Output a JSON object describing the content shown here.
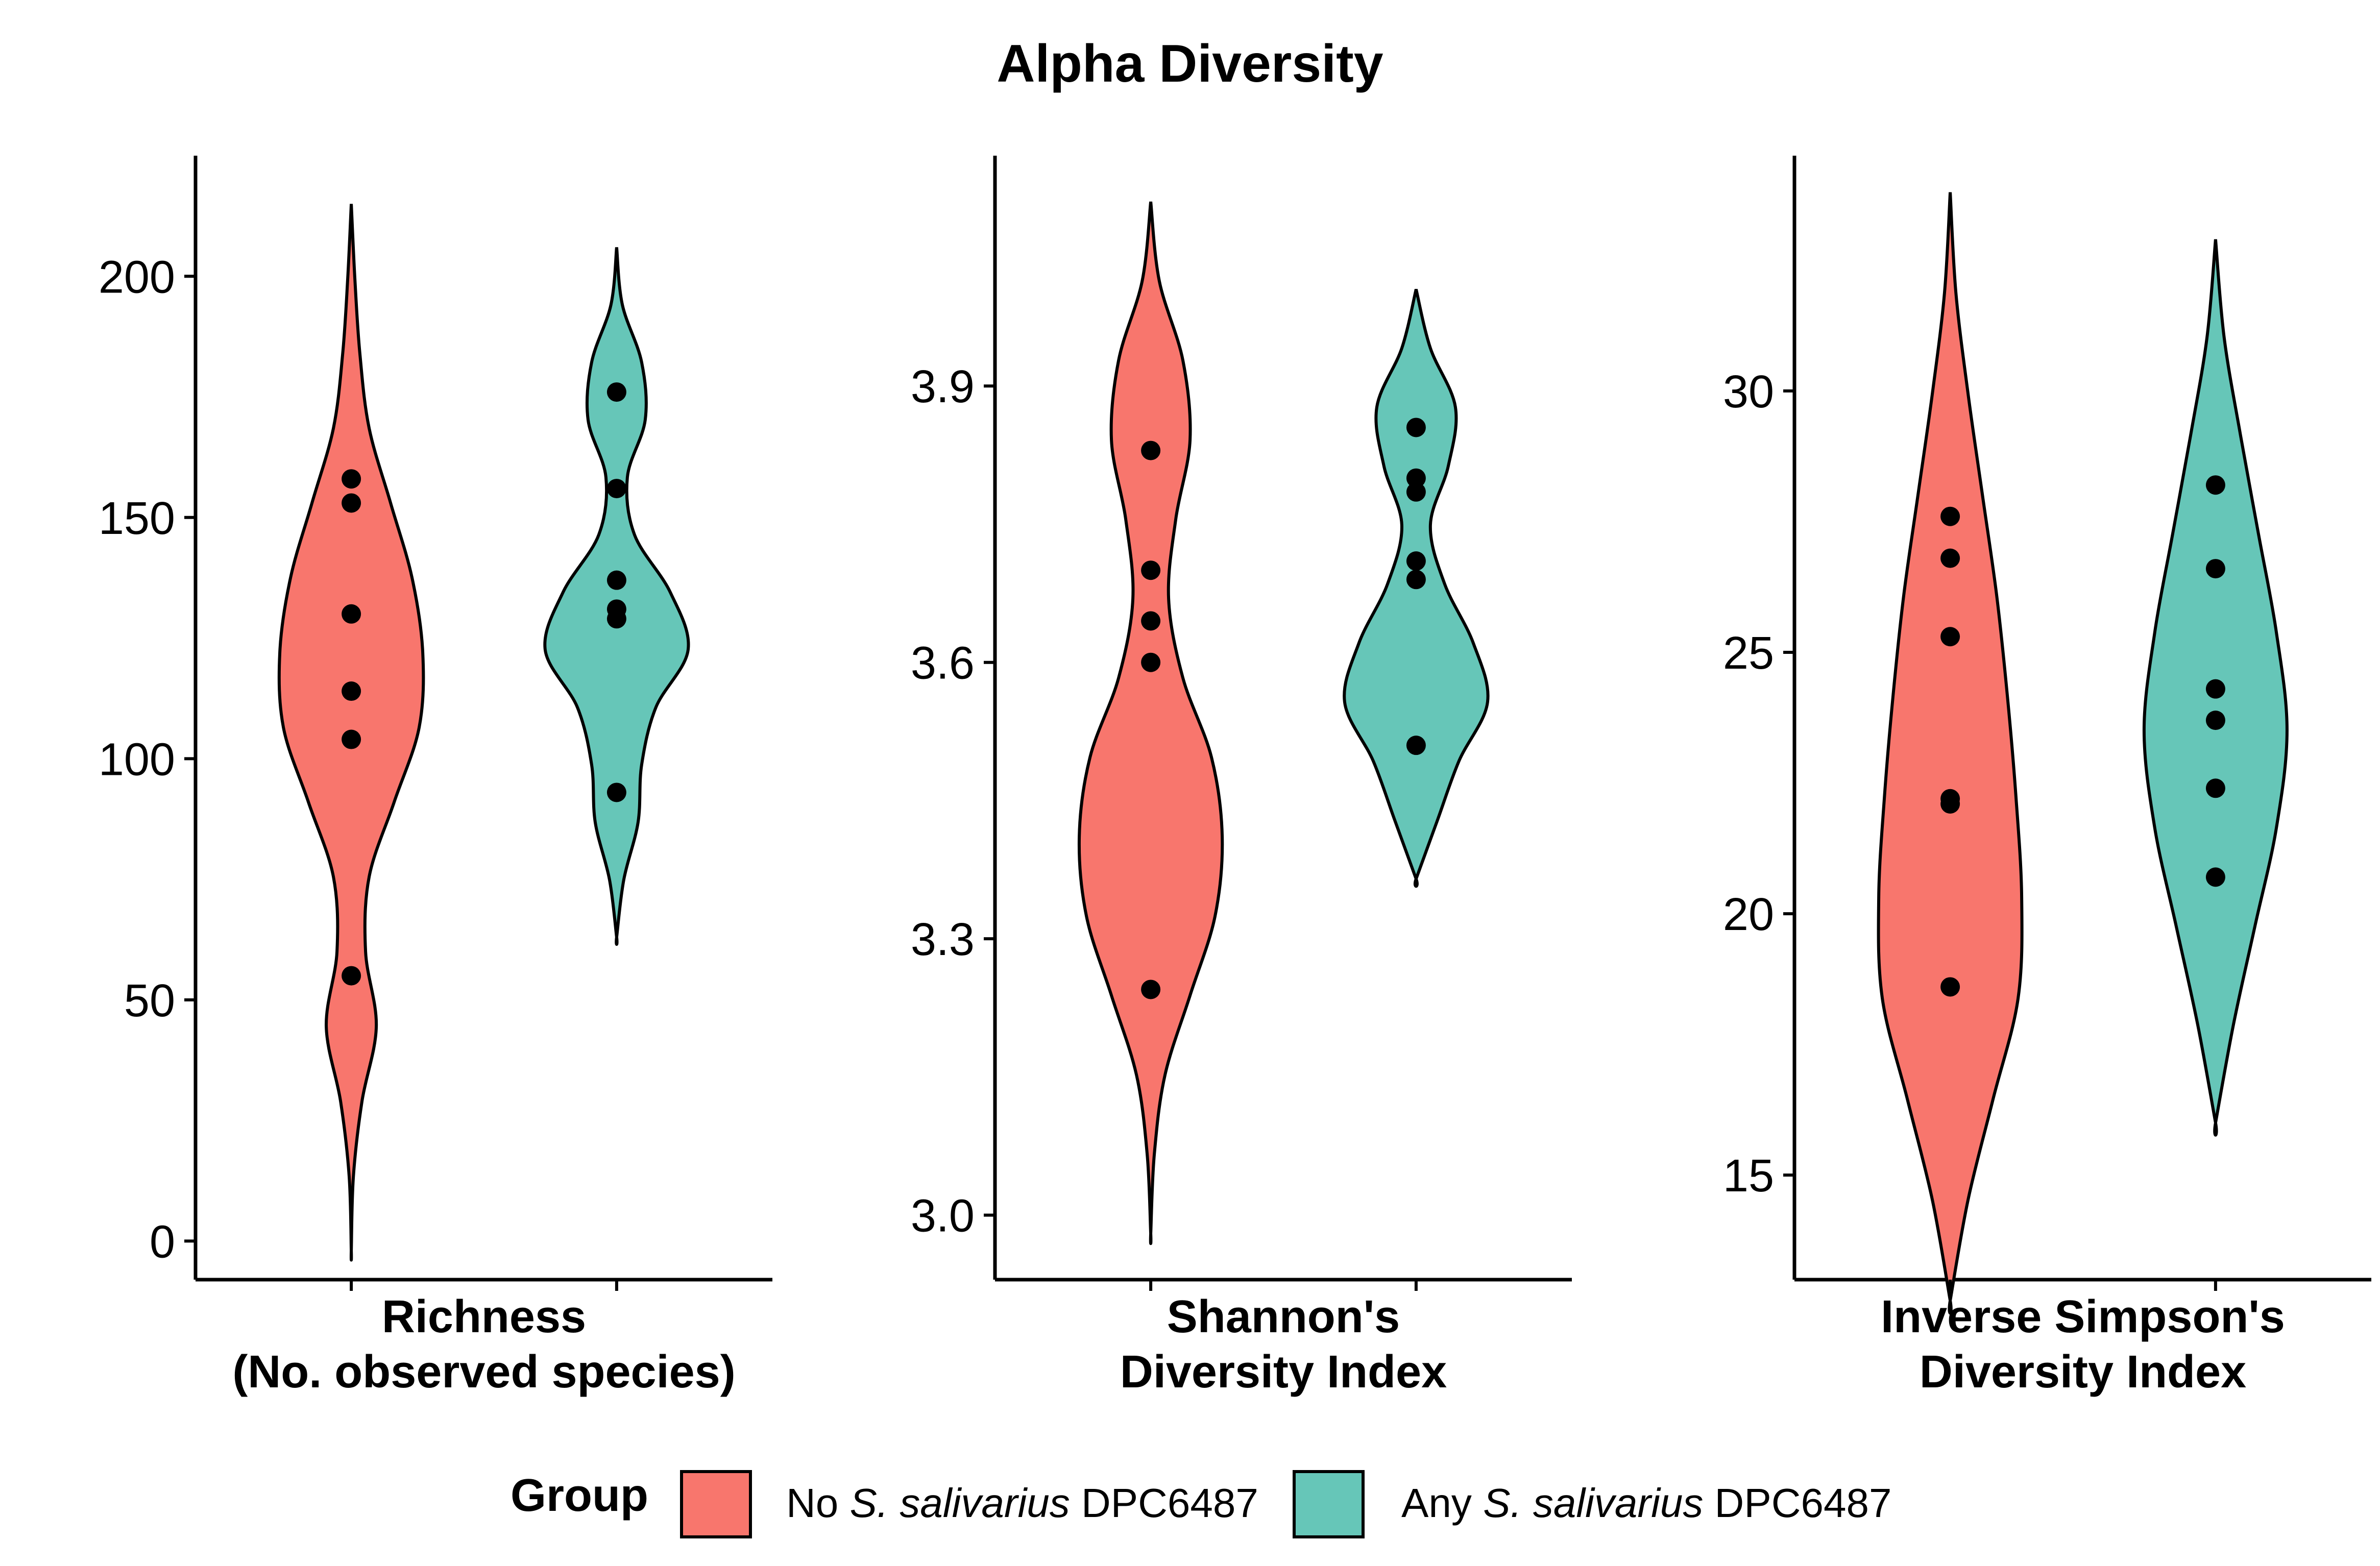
{
  "chart_data": {
    "type": "violin",
    "title": "Alpha Diversity",
    "legend": {
      "title": "Group",
      "position": "bottom",
      "items": [
        {
          "prefix": "No ",
          "italic": "S. salivarius",
          "suffix": " DPC6487",
          "color": "#F8766D"
        },
        {
          "prefix": "Any ",
          "italic": "S. salivarius",
          "suffix": " DPC6487",
          "color": "#66C6B8"
        }
      ]
    },
    "panels": [
      {
        "xlabel_lines": [
          "Richness",
          "(No. observed species)"
        ],
        "ylim": [
          -8,
          225
        ],
        "yticks": [
          0,
          50,
          100,
          150,
          200
        ],
        "tick_labels": [
          "0",
          "50",
          "100",
          "150",
          "200"
        ],
        "series": [
          {
            "group": "No S. salivarius DPC6487",
            "color": "#F8766D",
            "points": [
              158,
              153,
              130,
              114,
              104,
              55
            ],
            "min": -2,
            "max": 215,
            "density": [
              0.0,
              0.05,
              0.12,
              0.25,
              0.55,
              0.85,
              1.0,
              0.95,
              0.6,
              0.25,
              0.2,
              0.35,
              0.15,
              0.03,
              0.0
            ]
          },
          {
            "group": "Any S. salivarius DPC6487",
            "color": "#66C6B8",
            "points": [
              176,
              156,
              137,
              131,
              129,
              93
            ],
            "min": 63,
            "max": 206,
            "density": [
              0.0,
              0.08,
              0.35,
              0.4,
              0.15,
              0.25,
              0.75,
              1.0,
              0.55,
              0.35,
              0.3,
              0.1,
              0.0
            ]
          }
        ]
      },
      {
        "xlabel_lines": [
          "Shannon's",
          "Diversity Index"
        ],
        "ylim": [
          2.93,
          4.15
        ],
        "yticks": [
          3.0,
          3.3,
          3.6,
          3.9
        ],
        "tick_labels": [
          "3.0",
          "3.3",
          "3.6",
          "3.9"
        ],
        "series": [
          {
            "group": "No S. salivarius DPC6487",
            "color": "#F8766D",
            "points": [
              3.83,
              3.7,
              3.645,
              3.6,
              3.245
            ],
            "min": 2.98,
            "max": 4.1,
            "density": [
              0.0,
              0.12,
              0.45,
              0.55,
              0.35,
              0.25,
              0.45,
              0.85,
              1.0,
              0.9,
              0.55,
              0.2,
              0.05,
              0.0
            ]
          },
          {
            "group": "Any S. salivarius DPC6487",
            "color": "#66C6B8",
            "points": [
              3.855,
              3.8,
              3.785,
              3.71,
              3.69,
              3.51
            ],
            "min": 3.365,
            "max": 4.005,
            "density": [
              0.0,
              0.2,
              0.55,
              0.45,
              0.2,
              0.4,
              0.8,
              1.0,
              0.6,
              0.3,
              0.0
            ]
          }
        ]
      },
      {
        "xlabel_lines": [
          "Inverse Simpson's",
          "Diversity Index"
        ],
        "ylim": [
          13,
          34.5
        ],
        "yticks": [
          15,
          20,
          25,
          30
        ],
        "tick_labels": [
          "15",
          "20",
          "25",
          "30"
        ],
        "series": [
          {
            "group": "No S. salivarius DPC6487",
            "color": "#F8766D",
            "points": [
              27.6,
              26.8,
              25.3,
              22.2,
              22.1,
              18.6
            ],
            "min": 12.6,
            "max": 33.8,
            "density": [
              0.0,
              0.08,
              0.25,
              0.45,
              0.65,
              0.8,
              0.92,
              1.0,
              0.95,
              0.6,
              0.25,
              0.0
            ]
          },
          {
            "group": "Any S. salivarius DPC6487",
            "color": "#66C6B8",
            "points": [
              28.2,
              26.6,
              24.3,
              23.7,
              22.4,
              20.7
            ],
            "min": 16.0,
            "max": 32.9,
            "density": [
              0.0,
              0.12,
              0.35,
              0.6,
              0.85,
              1.0,
              0.85,
              0.55,
              0.25,
              0.0
            ]
          }
        ]
      }
    ]
  }
}
